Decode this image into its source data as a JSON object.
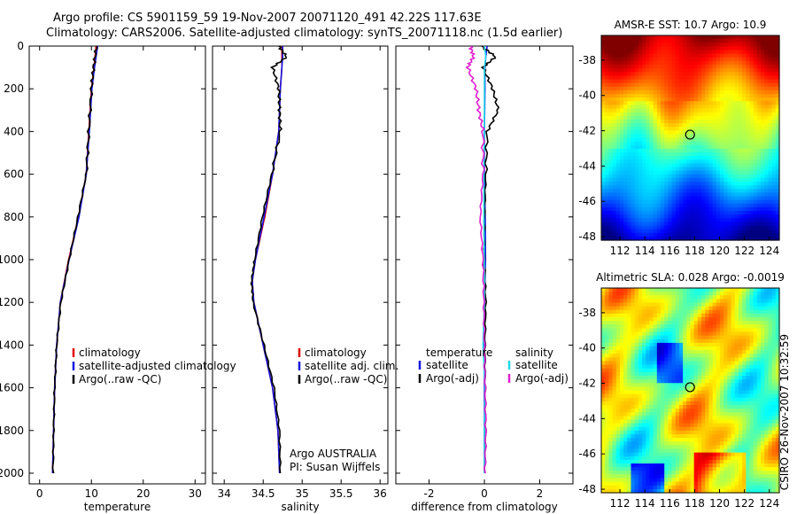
{
  "title": {
    "line1": "Argo profile: CS 5901159_59 19-Nov-2007 20071120_491 42.22S 117.63E",
    "line2": "Climatology: CARS2006. Satellite-adjusted climatology: synTS_20071118.nc (1.5d earlier)"
  },
  "side_stamp": "CSIRO 26-Nov-2007 10:32:59",
  "colors": {
    "red": "#e00000",
    "blue": "#1515e0",
    "black": "#000000",
    "cyan": "#20d8e8",
    "magenta": "#e020d0"
  },
  "chart_data": [
    {
      "type": "line",
      "name": "temperature-profile",
      "xlabel": "temperature",
      "ylabel": "",
      "xlim": [
        -2,
        32
      ],
      "ylim": [
        2050,
        0
      ],
      "xticks": [
        0,
        10,
        20,
        30
      ],
      "yticks": [
        0,
        200,
        400,
        600,
        800,
        1000,
        1200,
        1400,
        1600,
        1800,
        2000
      ],
      "depth": [
        0,
        100,
        200,
        400,
        600,
        800,
        1000,
        1200,
        1400,
        1600,
        1800,
        2000
      ],
      "series": [
        {
          "name": "climatology",
          "color": "red",
          "values": [
            10.9,
            10.5,
            10.0,
            9.5,
            9.0,
            7.5,
            5.6,
            4.0,
            3.3,
            2.9,
            2.7,
            2.5
          ]
        },
        {
          "name": "satellite-adjusted climatology",
          "color": "blue",
          "values": [
            11.2,
            10.6,
            10.1,
            9.6,
            9.0,
            7.6,
            5.7,
            4.0,
            3.3,
            2.9,
            2.7,
            2.5
          ]
        },
        {
          "name": "Argo(..raw -QC)",
          "color": "black",
          "values": [
            11.0,
            10.4,
            10.0,
            9.5,
            9.0,
            7.4,
            5.7,
            4.1,
            3.3,
            2.9,
            2.7,
            2.6
          ]
        }
      ],
      "legend": [
        "climatology",
        "satellite-adjusted climatology",
        "Argo(..raw -QC)"
      ]
    },
    {
      "type": "line",
      "name": "salinity-profile",
      "xlabel": "salinity",
      "xlim": [
        33.85,
        36.1
      ],
      "ylim": [
        2050,
        0
      ],
      "xticks": [
        34,
        34.5,
        35,
        35.5,
        36
      ],
      "depth": [
        0,
        50,
        100,
        200,
        300,
        400,
        600,
        800,
        1000,
        1100,
        1200,
        1400,
        1600,
        1800,
        2000
      ],
      "series": [
        {
          "name": "climatology",
          "color": "red",
          "values": [
            34.74,
            34.74,
            34.74,
            34.72,
            34.71,
            34.7,
            34.62,
            34.52,
            34.4,
            34.36,
            34.38,
            34.5,
            34.62,
            34.69,
            34.71
          ]
        },
        {
          "name": "satellite adj. clim.",
          "color": "blue",
          "values": [
            34.75,
            34.75,
            34.74,
            34.72,
            34.71,
            34.7,
            34.62,
            34.51,
            34.4,
            34.36,
            34.38,
            34.5,
            34.62,
            34.69,
            34.71
          ]
        },
        {
          "name": "Argo(..raw -QC)",
          "color": "black",
          "values": [
            34.7,
            34.8,
            34.62,
            34.7,
            34.71,
            34.72,
            34.61,
            34.49,
            34.39,
            34.35,
            34.37,
            34.51,
            34.64,
            34.71,
            34.72
          ]
        }
      ],
      "legend": [
        "climatology",
        "satellite adj. clim.",
        "Argo(..raw -QC)"
      ],
      "annotation": [
        "Argo AUSTRALIA",
        "PI: Susan Wijffels"
      ]
    },
    {
      "type": "line",
      "name": "difference-profile",
      "xlabel": "difference from climatology",
      "xlim": [
        -3.2,
        3.2
      ],
      "ylim": [
        2050,
        0
      ],
      "xticks": [
        -2,
        0,
        2
      ],
      "depth": [
        0,
        50,
        100,
        200,
        300,
        400,
        600,
        800,
        1000,
        1200,
        1400,
        1600,
        1800,
        2000
      ],
      "series": [
        {
          "name": "temperature satellite",
          "color": "blue",
          "values": [
            0.1,
            0.05,
            0.02,
            0.02,
            0.01,
            0.0,
            0.0,
            0.03,
            0.04,
            0.0,
            0.0,
            0.0,
            0.0,
            0.0
          ]
        },
        {
          "name": "temperature Argo(-adj)",
          "color": "black",
          "values": [
            -0.1,
            0.4,
            -0.05,
            0.3,
            0.5,
            0.1,
            0.05,
            0.0,
            0.0,
            0.05,
            0.02,
            0.03,
            0.05,
            0.02
          ]
        },
        {
          "name": "salinity satellite",
          "color": "cyan",
          "values": [
            0.0,
            0.05,
            0.0,
            0.0,
            0.0,
            0.0,
            -0.02,
            -0.02,
            0.0,
            0.0,
            -0.05,
            0.02,
            0.0,
            0.0
          ]
        },
        {
          "name": "salinity Argo(-adj)",
          "color": "magenta",
          "values": [
            -0.5,
            -0.4,
            -0.6,
            -0.3,
            -0.2,
            -0.05,
            -0.05,
            -0.15,
            -0.05,
            -0.02,
            0.0,
            0.03,
            0.05,
            0.02
          ]
        }
      ],
      "legend": {
        "headers": [
          "temperature",
          "salinity"
        ],
        "left": [
          "satellite",
          "Argo(-adj)"
        ],
        "right": [
          "satellite",
          "Argo(-adj)"
        ]
      }
    },
    {
      "type": "heatmap",
      "name": "sst-map",
      "title": "AMSR-E SST: 10.7 Argo: 10.9",
      "xlim": [
        110.5,
        124.8
      ],
      "ylim": [
        -48.2,
        -36.6
      ],
      "xticks": [
        112,
        114,
        116,
        118,
        120,
        122,
        124
      ],
      "yticks": [
        -38,
        -40,
        -42,
        -44,
        -46,
        -48
      ],
      "marker": {
        "lon": 117.63,
        "lat": -42.22
      }
    },
    {
      "type": "heatmap",
      "name": "sla-map",
      "title": "Altimetric SLA: 0.028 Argo: -0.0019",
      "xlim": [
        110.5,
        124.8
      ],
      "ylim": [
        -48.2,
        -36.6
      ],
      "xticks": [
        112,
        114,
        116,
        118,
        120,
        122,
        124
      ],
      "yticks": [
        -38,
        -40,
        -42,
        -44,
        -46,
        -48
      ],
      "marker": {
        "lon": 117.63,
        "lat": -42.22
      }
    }
  ]
}
